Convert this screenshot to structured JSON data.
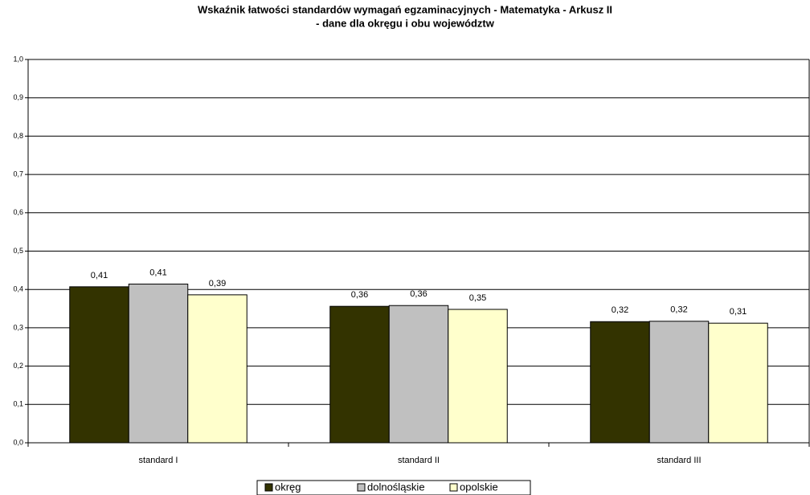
{
  "chart_data": {
    "type": "bar",
    "title": [
      "Wskaźnik łatwości standardów wymagań egzaminacyjnych - Matematyka - Arkusz II",
      "- dane dla okręgu i obu województw"
    ],
    "categories": [
      "standard I",
      "standard II",
      "standard III"
    ],
    "series": [
      {
        "name": "okręg",
        "color": "#333300",
        "values": [
          0.407,
          0.356,
          0.316
        ],
        "value_labels": [
          "0,41",
          "0,36",
          "0,32"
        ]
      },
      {
        "name": "dolnośląskie",
        "color": "#c0c0c0",
        "values": [
          0.414,
          0.358,
          0.317
        ],
        "value_labels": [
          "0,41",
          "0,36",
          "0,32"
        ]
      },
      {
        "name": "opolskie",
        "color": "#ffffcc",
        "values": [
          0.386,
          0.348,
          0.312
        ],
        "value_labels": [
          "0,39",
          "0,35",
          "0,31"
        ]
      }
    ],
    "ylim": [
      0,
      1
    ],
    "yticks": [
      {
        "value": 0,
        "label": "0,0"
      },
      {
        "value": 0.1,
        "label": "0,1"
      },
      {
        "value": 0.2,
        "label": "0,2"
      },
      {
        "value": 0.3,
        "label": "0,3"
      },
      {
        "value": 0.4,
        "label": "0,4"
      },
      {
        "value": 0.5,
        "label": "0,5"
      },
      {
        "value": 0.6,
        "label": "0,6"
      },
      {
        "value": 0.7,
        "label": "0,7"
      },
      {
        "value": 0.8,
        "label": "0,8"
      },
      {
        "value": 0.9,
        "label": "0,9"
      },
      {
        "value": 1,
        "label": "1,0"
      }
    ],
    "grid": true,
    "legend": "bottom"
  }
}
